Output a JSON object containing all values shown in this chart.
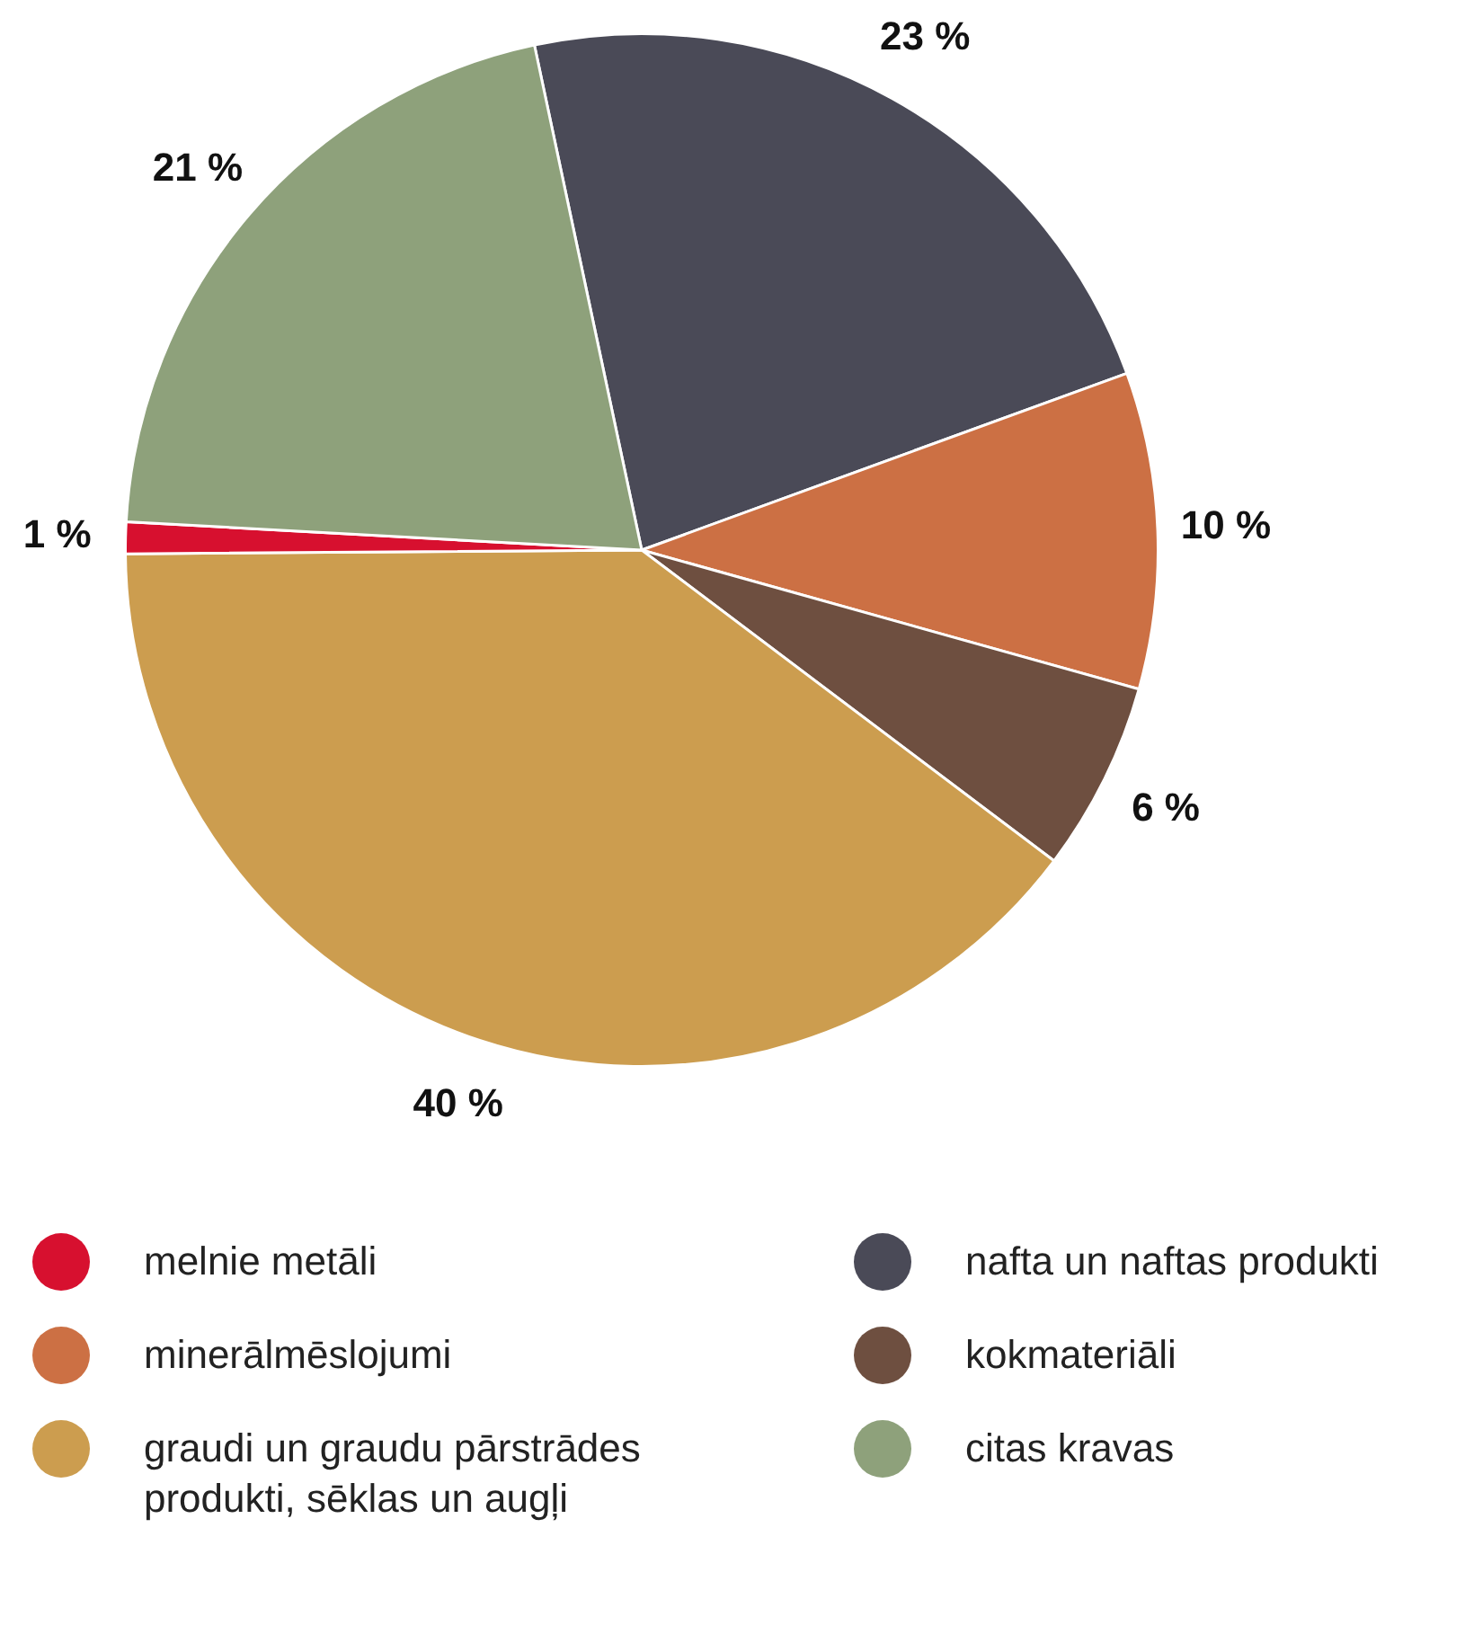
{
  "chart_data": {
    "type": "pie",
    "categories": [
      "nafta un naftas produkti",
      "minerālmēslojumi",
      "kokmateriāli",
      "graudi un graudu pārstrādes produkti, sēklas un augļi",
      "melnie metāli",
      "citas kravas"
    ],
    "values": [
      23,
      10,
      6,
      40,
      1,
      21
    ],
    "colors": [
      "#4a4a57",
      "#cc7044",
      "#6e4f40",
      "#cc9d4f",
      "#d7102f",
      "#8ea17b"
    ],
    "value_labels": [
      "23 %",
      "10 %",
      "6 %",
      "40 %",
      "1 %",
      "21 %"
    ],
    "legend": "bottom"
  }
}
